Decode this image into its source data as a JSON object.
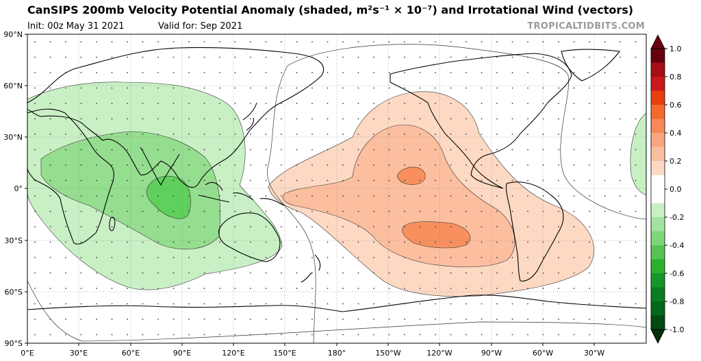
{
  "header": {
    "title": "CanSIPS 200mb Velocity Potential Anomaly (shaded, m²s⁻¹ × 10⁻⁷) and Irrotational Wind (vectors)",
    "init": "Init: 00z May 31 2021",
    "valid": "Valid for: Sep 2021",
    "brand": "TROPICALTIDBITS.COM"
  },
  "map": {
    "lat_labels": [
      "90°N",
      "60°N",
      "30°N",
      "0°",
      "30°S",
      "60°S",
      "90°S"
    ],
    "lon_labels": [
      "0°E",
      "30°E",
      "60°E",
      "90°E",
      "120°E",
      "150°E",
      "180°",
      "150°W",
      "120°W",
      "90°W",
      "60°W",
      "30°W"
    ]
  },
  "colorbar": {
    "ticks": [
      "1.0",
      "0.8",
      "0.6",
      "0.4",
      "0.2",
      "0.0",
      "-0.2",
      "-0.4",
      "-0.6",
      "-0.8",
      "-1.0"
    ],
    "colors": [
      "#67000d",
      "#a50f15",
      "#cb181d",
      "#e6400e",
      "#f36a2c",
      "#f7885a",
      "#f9a57e",
      "#fbbf9f",
      "#fdd9c4",
      "#ffffff",
      "#ffffff",
      "#c9f0c5",
      "#a4e2a0",
      "#7ed67a",
      "#55c454",
      "#2bb02e",
      "#14962a",
      "#0a7c22",
      "#056719",
      "#024a11"
    ],
    "neg_color": "#00300a",
    "pos_color": "#67000d"
  },
  "anomaly": {
    "divergence_color_1": "#fdd9c4",
    "divergence_color_2": "#fbbf9f",
    "divergence_color_3": "#f7905e",
    "convergence_color_1": "#c9f0c5",
    "convergence_color_2": "#95dd8f",
    "convergence_color_3": "#5fd05b"
  }
}
